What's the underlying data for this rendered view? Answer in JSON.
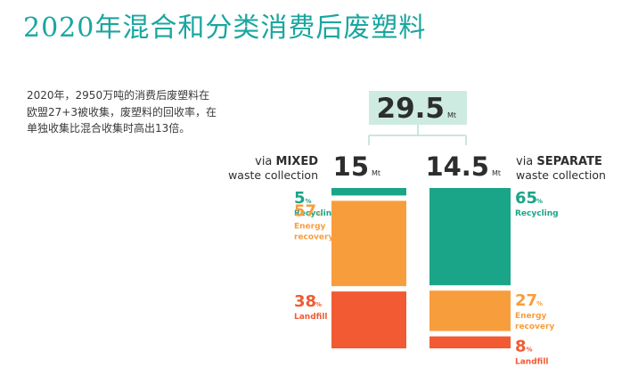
{
  "title": "2020年混合和分类消费后废塑料",
  "description": "2020年，2950万吨的消费后废塑料在欧盟27+3被收集，废塑料的回收率，在单独收集比混合收集时高出13倍。",
  "colors": {
    "total_box": "#cdebe1",
    "connector": "#b8ddd6",
    "Recycling": "#1aa588",
    "Energy recovery": "#f89d3c",
    "Landfill": "#f15a32",
    "dark_text": "#2d2d2d"
  },
  "chart_data": {
    "type": "stacked-bar",
    "unit": "Mt",
    "total": {
      "value": "29.5",
      "unit": "Mt"
    },
    "categories": [
      "MIXED",
      "SEPARATE"
    ],
    "groups": [
      {
        "key": "mixed",
        "prefix": "via",
        "name": "MIXED",
        "subtitle": "waste collection",
        "value": "15",
        "unit": "Mt",
        "segments": [
          {
            "category": "Recycling",
            "value": 5,
            "label": "Recycling"
          },
          {
            "category": "Energy recovery",
            "value": 57,
            "label": "Energy recovery"
          },
          {
            "category": "Landfill",
            "value": 38,
            "label": "Landfill"
          }
        ]
      },
      {
        "key": "separate",
        "prefix": "via",
        "name": "SEPARATE",
        "subtitle": "waste collection",
        "value": "14.5",
        "unit": "Mt",
        "segments": [
          {
            "category": "Recycling",
            "value": 65,
            "label": "Recycling"
          },
          {
            "category": "Energy recovery",
            "value": 27,
            "label": "Energy recovery"
          },
          {
            "category": "Landfill",
            "value": 8,
            "label": "Landfill"
          }
        ]
      }
    ],
    "percent_symbol": "%"
  }
}
